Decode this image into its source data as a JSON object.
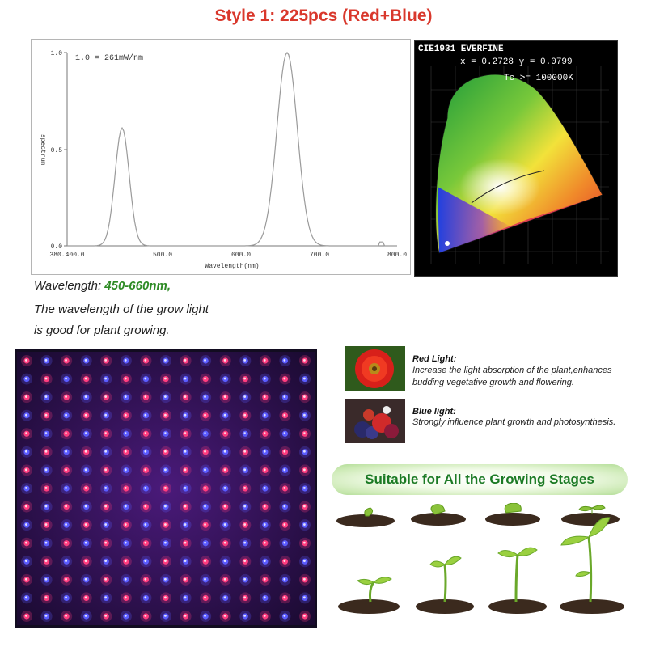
{
  "title": "Style 1:  225pcs (Red+Blue)",
  "spectrum": {
    "scale_note": "1.0 = 261mW/nm",
    "ylabel": "spectrum",
    "xlabel": "Wavelength(nm)",
    "y_ticks": [
      "1.0",
      "0.5",
      "0.0"
    ],
    "x_ticks": [
      "380.400.0",
      "500.0",
      "600.0",
      "700.0",
      "800.0"
    ],
    "peaks_nm": [
      450,
      660
    ],
    "peak_levels": [
      0.61,
      1.0
    ]
  },
  "cie": {
    "heading": "CIE1931 EVERFINE",
    "coords": "x = 0.2728 y = 0.0799",
    "tc": "Tc >= 100000K"
  },
  "wavelength": {
    "prefix": "Wavelength: ",
    "value": "450-660nm,",
    "line2": "The wavelength of the grow light",
    "line3": "is good for plant growing."
  },
  "panel": {
    "rows": 15,
    "cols": 15,
    "led_colors": [
      "#ff3d7f",
      "#5b5cff"
    ]
  },
  "info": {
    "red": {
      "title": "Red Light:",
      "desc": "Increase the light absorption of the plant,enhances budding vegetative growth and flowering."
    },
    "blue": {
      "title": "Blue light:",
      "desc": "Strongly influence plant growth and photosynthesis."
    }
  },
  "stages_label": "Suitable for All the Growing Stages",
  "colors": {
    "title": "#d9382c",
    "wavelength_value": "#2e8b25",
    "stages_text": "#1b7a24"
  }
}
